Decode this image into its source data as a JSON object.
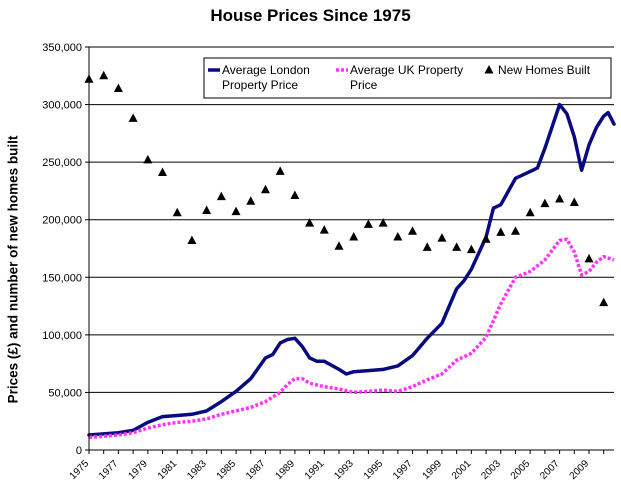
{
  "chart_data": {
    "type": "line",
    "title": "House Prices Since 1975",
    "ylabel": "Prices (£) and number of new homes built",
    "xlabel": "",
    "ylim": [
      0,
      350000
    ],
    "yticks": [
      0,
      50000,
      100000,
      150000,
      200000,
      250000,
      300000,
      350000
    ],
    "ytick_labels": [
      "0",
      "50,000",
      "100,000",
      "150,000",
      "200,000",
      "250,000",
      "300,000",
      "350,000"
    ],
    "xlim": [
      1975,
      2010.7
    ],
    "xtick_labels": [
      "1975",
      "1977",
      "1979",
      "1981",
      "1983",
      "1985",
      "1987",
      "1989",
      "1991",
      "1993",
      "1995",
      "1997",
      "1999",
      "2001",
      "2003",
      "2005",
      "2007",
      "2009"
    ],
    "grid": true,
    "legend_position": "top-right",
    "series": [
      {
        "name": "Average London Property Price",
        "style": "solid",
        "color": "#0a0a80",
        "x": [
          1975,
          1976,
          1977,
          1978,
          1979,
          1980,
          1981,
          1982,
          1983,
          1984,
          1985,
          1986,
          1987,
          1987.5,
          1988,
          1988.5,
          1989,
          1989.5,
          1990,
          1990.5,
          1991,
          1992,
          1992.5,
          1993,
          1994,
          1995,
          1996,
          1997,
          1998,
          1999,
          2000,
          2000.5,
          2001,
          2002,
          2002.5,
          2003,
          2004,
          2005,
          2005.5,
          2006,
          2007,
          2007.5,
          2008,
          2008.5,
          2009,
          2009.5,
          2010,
          2010.3,
          2010.7
        ],
        "values": [
          13000,
          14000,
          15000,
          17000,
          24000,
          29000,
          30000,
          31000,
          34000,
          42000,
          51000,
          62000,
          80000,
          83000,
          93000,
          96000,
          97000,
          90000,
          80000,
          77000,
          77000,
          70000,
          66000,
          68000,
          69000,
          70000,
          73000,
          82000,
          97000,
          110000,
          140000,
          147000,
          157000,
          185000,
          210000,
          213000,
          236000,
          242000,
          245000,
          262000,
          300000,
          292000,
          272000,
          243000,
          265000,
          280000,
          290000,
          293000,
          283000
        ]
      },
      {
        "name": "Average UK Property Price",
        "style": "dotted",
        "color": "#ff33ff",
        "x": [
          1975,
          1976,
          1977,
          1978,
          1979,
          1980,
          1981,
          1982,
          1983,
          1984,
          1985,
          1986,
          1987,
          1988,
          1988.5,
          1989,
          1989.5,
          1990,
          1991,
          1992,
          1993,
          1994,
          1995,
          1996,
          1997,
          1998,
          1999,
          2000,
          2001,
          2002,
          2003,
          2004,
          2005,
          2006,
          2007,
          2007.5,
          2008,
          2008.5,
          2009,
          2009.5,
          2010,
          2010.7
        ],
        "values": [
          11000,
          12000,
          13000,
          15000,
          19000,
          22000,
          24000,
          25000,
          27000,
          31000,
          34000,
          37000,
          42000,
          50000,
          57000,
          62000,
          62000,
          58000,
          55000,
          53000,
          50000,
          51000,
          52000,
          51000,
          55000,
          61000,
          66000,
          78000,
          84000,
          98000,
          127000,
          150000,
          155000,
          165000,
          182000,
          183000,
          172000,
          152000,
          155000,
          163000,
          168000,
          165000
        ]
      },
      {
        "name": "New Homes Built",
        "style": "markers",
        "marker": "triangle",
        "color": "#000000",
        "x": [
          1975,
          1976,
          1977,
          1978,
          1979,
          1980,
          1981,
          1982,
          1983,
          1984,
          1985,
          1986,
          1987,
          1988,
          1989,
          1990,
          1991,
          1992,
          1993,
          1994,
          1995,
          1996,
          1997,
          1998,
          1999,
          2000,
          2001,
          2002,
          2003,
          2004,
          2005,
          2006,
          2007,
          2008,
          2009,
          2010
        ],
        "values": [
          322000,
          325000,
          314000,
          288000,
          252000,
          241000,
          206000,
          182000,
          208000,
          220000,
          207000,
          216000,
          226000,
          242000,
          221000,
          197000,
          191000,
          177000,
          185000,
          196000,
          197000,
          185000,
          190000,
          176000,
          184000,
          176000,
          174000,
          183000,
          189000,
          190000,
          206000,
          214000,
          218000,
          215000,
          166000,
          128000
        ]
      }
    ]
  }
}
